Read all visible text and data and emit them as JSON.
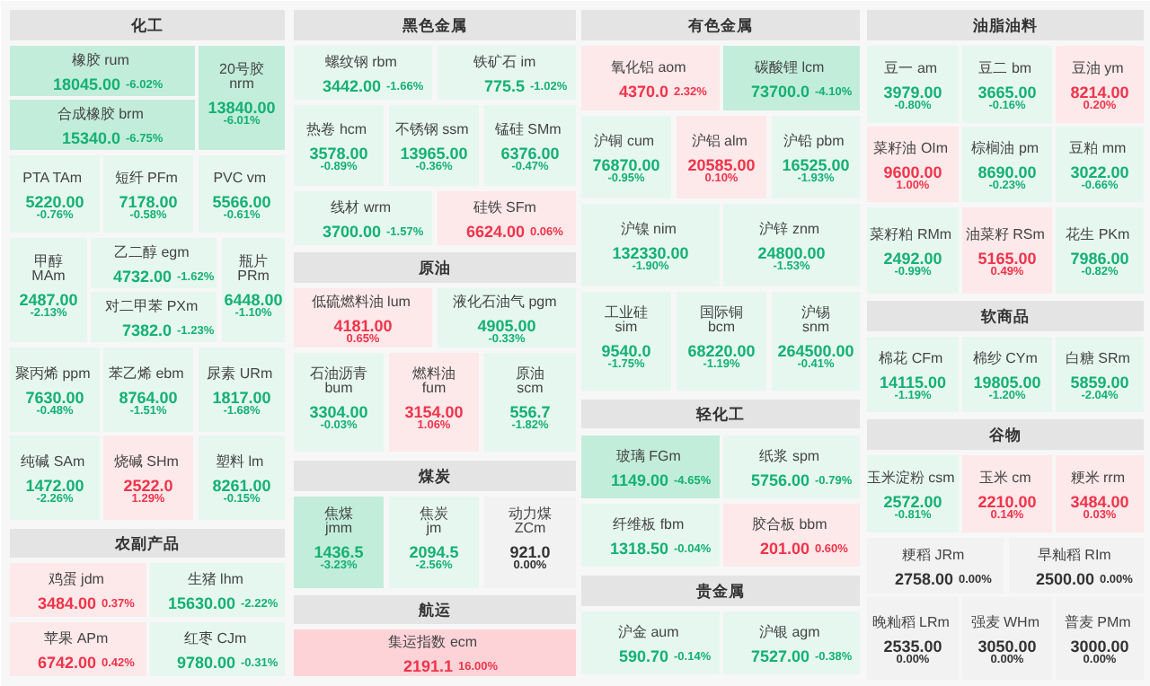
{
  "chart_data": [
    {
      "type": "other",
      "title": "化工",
      "categories": [
        "橡胶 rum",
        "合成橡胶 brm",
        "20号胶 nrm",
        "PTA TAm",
        "短纤 PFm",
        "PVC vm",
        "甲醇 MAm",
        "乙二醇 egm",
        "对二甲苯 PXm",
        "瓶片 PRm",
        "聚丙烯 ppm",
        "苯乙烯 ebm",
        "尿素 URm",
        "纯碱 SAm",
        "烧碱 SHm",
        "塑料 lm"
      ],
      "series": [
        {
          "values": [
            18045.0,
            15340.0,
            13840.0,
            5220.0,
            7178.0,
            5566.0,
            2487.0,
            4732.0,
            7382.0,
            6448.0,
            7630.0,
            8764.0,
            1817.0,
            1472.0,
            2522.0,
            8261.0
          ],
          "value_labels": [
            "18045.00",
            "15340.0",
            "13840.00",
            "5220.00",
            "7178.00",
            "5566.00",
            "2487.00",
            "4732.00",
            "7382.0",
            "6448.00",
            "7630.00",
            "8764.00",
            "1817.00",
            "1472.00",
            "2522.0",
            "8261.00"
          ],
          "colors": [
            "#c2eddb",
            "#c2eddb",
            "#c2eddb",
            "#e6f7f0",
            "#e6f7f0",
            "#e6f7f0",
            "#e6f7f0",
            "#e6f7f0",
            "#e6f7f0",
            "#e6f7f0",
            "#e6f7f0",
            "#e6f7f0",
            "#e6f7f0",
            "#e6f7f0",
            "#fde8ea",
            "#e6f7f0"
          ]
        },
        {
          "values": [
            -6.02,
            -6.75,
            -6.01,
            -0.76,
            -0.58,
            -0.61,
            -2.13,
            -1.62,
            -1.23,
            -1.1,
            -0.48,
            -1.51,
            -1.68,
            -2.26,
            1.29,
            -0.15
          ],
          "value_labels": [
            "-6.02%",
            "-6.75%",
            "-6.01%",
            "-0.76%",
            "-0.58%",
            "-0.61%",
            "-2.13%",
            "-1.62%",
            "-1.23%",
            "-1.10%",
            "-0.48%",
            "-1.51%",
            "-1.68%",
            "-2.26%",
            "1.29%",
            "-0.15%"
          ]
        }
      ]
    },
    {
      "type": "other",
      "title": "农副产品",
      "categories": [
        "鸡蛋 jdm",
        "生猪 lhm",
        "苹果 APm",
        "红枣 CJm"
      ],
      "series": [
        {
          "values": [
            3484.0,
            15630.0,
            6742.0,
            9780.0
          ],
          "value_labels": [
            "3484.00",
            "15630.00",
            "6742.00",
            "9780.00"
          ],
          "colors": [
            "#fde8ea",
            "#e6f7f0",
            "#fde8ea",
            "#e6f7f0"
          ]
        },
        {
          "values": [
            0.37,
            -2.22,
            0.42,
            -0.31
          ],
          "value_labels": [
            "0.37%",
            "-2.22%",
            "0.42%",
            "-0.31%"
          ]
        }
      ]
    },
    {
      "type": "other",
      "title": "黑色金属",
      "categories": [
        "螺纹钢 rbm",
        "铁矿石 im",
        "热卷 hcm",
        "不锈钢 ssm",
        "锰硅 SMm",
        "线材 wrm",
        "硅铁 SFm"
      ],
      "series": [
        {
          "values": [
            3442.0,
            775.5,
            3578.0,
            13965.0,
            6376.0,
            3700.0,
            6624.0
          ],
          "value_labels": [
            "3442.00",
            "775.5",
            "3578.00",
            "13965.00",
            "6376.00",
            "3700.00",
            "6624.00"
          ],
          "colors": [
            "#e6f7f0",
            "#e6f7f0",
            "#e6f7f0",
            "#e6f7f0",
            "#e6f7f0",
            "#e6f7f0",
            "#fde8ea"
          ]
        },
        {
          "values": [
            -1.66,
            -1.02,
            -0.89,
            -0.36,
            -0.47,
            -1.57,
            0.06
          ],
          "value_labels": [
            "-1.66%",
            "-1.02%",
            "-0.89%",
            "-0.36%",
            "-0.47%",
            "-1.57%",
            "0.06%"
          ]
        }
      ]
    },
    {
      "type": "other",
      "title": "原油",
      "categories": [
        "低硫燃料油 lum",
        "液化石油气 pgm",
        "石油沥青 bum",
        "燃料油 fum",
        "原油 scm"
      ],
      "series": [
        {
          "values": [
            4181.0,
            4905.0,
            3304.0,
            3154.0,
            556.7
          ],
          "value_labels": [
            "4181.00",
            "4905.00",
            "3304.00",
            "3154.00",
            "556.7"
          ],
          "colors": [
            "#fde8ea",
            "#e6f7f0",
            "#e6f7f0",
            "#fde8ea",
            "#e6f7f0"
          ]
        },
        {
          "values": [
            0.65,
            -0.33,
            -0.03,
            1.06,
            -1.82
          ],
          "value_labels": [
            "0.65%",
            "-0.33%",
            "-0.03%",
            "1.06%",
            "-1.82%"
          ]
        }
      ]
    },
    {
      "type": "other",
      "title": "煤炭",
      "categories": [
        "焦煤 jmm",
        "焦炭 jm",
        "动力煤 ZCm"
      ],
      "series": [
        {
          "values": [
            1436.5,
            2094.5,
            921.0
          ],
          "value_labels": [
            "1436.5",
            "2094.5",
            "921.0"
          ],
          "colors": [
            "#c2eddb",
            "#e6f7f0",
            "#f2f2f2"
          ]
        },
        {
          "values": [
            -3.23,
            -2.56,
            0.0
          ],
          "value_labels": [
            "-3.23%",
            "-2.56%",
            "0.00%"
          ]
        }
      ]
    },
    {
      "type": "other",
      "title": "航运",
      "categories": [
        "集运指数 ecm"
      ],
      "series": [
        {
          "values": [
            2191.1
          ],
          "value_labels": [
            "2191.1"
          ],
          "colors": [
            "#fdd3d8"
          ]
        },
        {
          "values": [
            16.0
          ],
          "value_labels": [
            "16.00%"
          ]
        }
      ]
    },
    {
      "type": "other",
      "title": "有色金属",
      "categories": [
        "氧化铝 aom",
        "碳酸锂 lcm",
        "沪铜 cum",
        "沪铝 alm",
        "沪铅 pbm",
        "沪镍 nim",
        "沪锌 znm",
        "工业硅 sim",
        "国际铜 bcm",
        "沪锡 snm"
      ],
      "series": [
        {
          "values": [
            4370.0,
            73700.0,
            76870.0,
            20585.0,
            16525.0,
            132330.0,
            24800.0,
            9540.0,
            68220.0,
            264500.0
          ],
          "value_labels": [
            "4370.0",
            "73700.0",
            "76870.00",
            "20585.00",
            "16525.00",
            "132330.00",
            "24800.00",
            "9540.0",
            "68220.00",
            "264500.00"
          ],
          "colors": [
            "#fde8ea",
            "#c2eddb",
            "#e6f7f0",
            "#fde8ea",
            "#e6f7f0",
            "#e6f7f0",
            "#e6f7f0",
            "#e6f7f0",
            "#e6f7f0",
            "#e6f7f0"
          ]
        },
        {
          "values": [
            2.32,
            -4.1,
            -0.95,
            0.1,
            -1.93,
            -1.9,
            -1.53,
            -1.75,
            -1.19,
            -0.41
          ],
          "value_labels": [
            "2.32%",
            "-4.10%",
            "-0.95%",
            "0.10%",
            "-1.93%",
            "-1.90%",
            "-1.53%",
            "-1.75%",
            "-1.19%",
            "-0.41%"
          ]
        }
      ]
    },
    {
      "type": "other",
      "title": "轻化工",
      "categories": [
        "玻璃 FGm",
        "纸浆 spm",
        "纤维板 fbm",
        "胶合板 bbm"
      ],
      "series": [
        {
          "values": [
            1149.0,
            5756.0,
            1318.5,
            201.0
          ],
          "value_labels": [
            "1149.00",
            "5756.00",
            "1318.50",
            "201.00"
          ],
          "colors": [
            "#c2eddb",
            "#e6f7f0",
            "#e6f7f0",
            "#fde8ea"
          ]
        },
        {
          "values": [
            -4.65,
            -0.79,
            -0.04,
            0.6
          ],
          "value_labels": [
            "-4.65%",
            "-0.79%",
            "-0.04%",
            "0.60%"
          ]
        }
      ]
    },
    {
      "type": "other",
      "title": "贵金属",
      "categories": [
        "沪金 aum",
        "沪银 agm"
      ],
      "series": [
        {
          "values": [
            590.7,
            7527.0
          ],
          "value_labels": [
            "590.70",
            "7527.00"
          ],
          "colors": [
            "#e6f7f0",
            "#e6f7f0"
          ]
        },
        {
          "values": [
            -0.14,
            -0.38
          ],
          "value_labels": [
            "-0.14%",
            "-0.38%"
          ]
        }
      ]
    },
    {
      "type": "other",
      "title": "油脂油料",
      "categories": [
        "豆一 am",
        "豆二 bm",
        "豆油 ym",
        "菜籽油 OIm",
        "棕榈油 pm",
        "豆粕 mm",
        "菜籽粕 RMm",
        "油菜籽 RSm",
        "花生 PKm"
      ],
      "series": [
        {
          "values": [
            3979.0,
            3665.0,
            8214.0,
            9600.0,
            8690.0,
            3022.0,
            2492.0,
            5165.0,
            7986.0
          ],
          "value_labels": [
            "3979.00",
            "3665.00",
            "8214.00",
            "9600.00",
            "8690.00",
            "3022.00",
            "2492.00",
            "5165.00",
            "7986.00"
          ],
          "colors": [
            "#e6f7f0",
            "#e6f7f0",
            "#fde8ea",
            "#fde8ea",
            "#e6f7f0",
            "#e6f7f0",
            "#e6f7f0",
            "#fde8ea",
            "#e6f7f0"
          ]
        },
        {
          "values": [
            -0.8,
            -0.16,
            0.2,
            1.0,
            -0.23,
            -0.66,
            -0.99,
            0.49,
            -0.82
          ],
          "value_labels": [
            "-0.80%",
            "-0.16%",
            "0.20%",
            "1.00%",
            "-0.23%",
            "-0.66%",
            "-0.99%",
            "0.49%",
            "-0.82%"
          ]
        }
      ]
    },
    {
      "type": "other",
      "title": "软商品",
      "categories": [
        "棉花 CFm",
        "棉纱 CYm",
        "白糖 SRm"
      ],
      "series": [
        {
          "values": [
            14115.0,
            19805.0,
            5859.0
          ],
          "value_labels": [
            "14115.00",
            "19805.00",
            "5859.00"
          ],
          "colors": [
            "#e6f7f0",
            "#e6f7f0",
            "#e6f7f0"
          ]
        },
        {
          "values": [
            -1.19,
            -1.2,
            -2.04
          ],
          "value_labels": [
            "-1.19%",
            "-1.20%",
            "-2.04%"
          ]
        }
      ]
    },
    {
      "type": "other",
      "title": "谷物",
      "categories": [
        "玉米淀粉 csm",
        "玉米 cm",
        "粳米 rrm",
        "粳稻 JRm",
        "早籼稻 RIm",
        "晚籼稻 LRm",
        "强麦 WHm",
        "普麦 PMm"
      ],
      "series": [
        {
          "values": [
            2572.0,
            2210.0,
            3484.0,
            2758.0,
            2500.0,
            2535.0,
            3050.0,
            3000.0
          ],
          "value_labels": [
            "2572.00",
            "2210.00",
            "3484.00",
            "2758.00",
            "2500.00",
            "2535.00",
            "3050.00",
            "3000.00"
          ],
          "colors": [
            "#e6f7f0",
            "#fde8ea",
            "#fde8ea",
            "#f2f2f2",
            "#f2f2f2",
            "#f2f2f2",
            "#f2f2f2",
            "#f2f2f2"
          ]
        },
        {
          "values": [
            -0.81,
            0.14,
            0.03,
            0.0,
            0.0,
            0.0,
            0.0,
            0.0
          ],
          "value_labels": [
            "-0.81%",
            "0.14%",
            "0.03%",
            "0.00%",
            "0.00%",
            "0.00%",
            "0.00%",
            "0.00%"
          ]
        }
      ]
    }
  ]
}
